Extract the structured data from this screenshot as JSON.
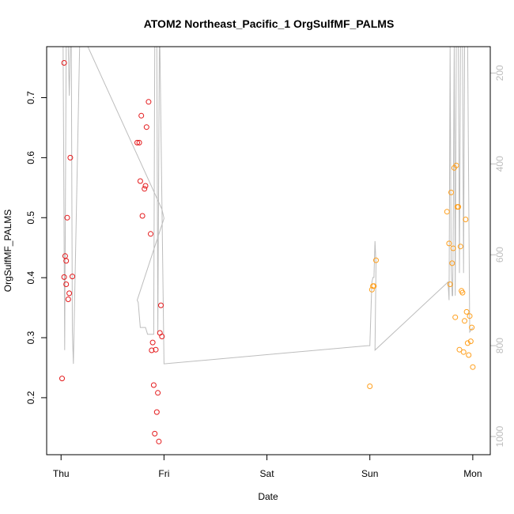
{
  "chart_data": {
    "type": "scatter",
    "title": "ATOM2 Northeast_Pacific_1 OrgSulfMF_PALMS",
    "xlabel": "Date",
    "ylabel": "OrgSulfMF_PALMS",
    "x_ticks": [
      "Thu",
      "Fri",
      "Sat",
      "Sun",
      "Mon"
    ],
    "x_range_days": [
      -0.14,
      4.17
    ],
    "y_ticks": [
      0.2,
      0.3,
      0.4,
      0.5,
      0.6,
      0.7
    ],
    "y_range": [
      0.105,
      0.785
    ],
    "right_axis": {
      "ticks": [
        200,
        400,
        600,
        800,
        1000
      ],
      "range": [
        1040,
        142
      ],
      "color": "#bdbdbd"
    },
    "colors": {
      "early": "#e41a1c",
      "late": "#ff9f1c",
      "line": "#bdbdbd"
    },
    "series": [
      {
        "color": "early",
        "points": [
          [
            0.01,
            0.232
          ],
          [
            0.03,
            0.401
          ],
          [
            0.03,
            0.758
          ],
          [
            0.04,
            0.436
          ],
          [
            0.05,
            0.389
          ],
          [
            0.05,
            0.428
          ],
          [
            0.06,
            0.5
          ],
          [
            0.07,
            0.364
          ],
          [
            0.08,
            0.374
          ],
          [
            0.09,
            0.6
          ],
          [
            0.11,
            0.402
          ],
          [
            0.74,
            0.625
          ],
          [
            0.76,
            0.625
          ],
          [
            0.77,
            0.561
          ],
          [
            0.78,
            0.67
          ],
          [
            0.79,
            0.503
          ],
          [
            0.81,
            0.548
          ],
          [
            0.82,
            0.553
          ],
          [
            0.83,
            0.651
          ],
          [
            0.85,
            0.693
          ],
          [
            0.87,
            0.473
          ],
          [
            0.88,
            0.279
          ],
          [
            0.89,
            0.292
          ],
          [
            0.9,
            0.221
          ],
          [
            0.91,
            0.14
          ],
          [
            0.92,
            0.28
          ],
          [
            0.93,
            0.176
          ],
          [
            0.94,
            0.208
          ],
          [
            0.95,
            0.127
          ],
          [
            0.96,
            0.308
          ],
          [
            0.97,
            0.354
          ],
          [
            0.98,
            0.302
          ]
        ]
      },
      {
        "color": "late",
        "points": [
          [
            3.0,
            0.219
          ],
          [
            3.02,
            0.38
          ],
          [
            3.03,
            0.386
          ],
          [
            3.04,
            0.386
          ],
          [
            3.06,
            0.429
          ],
          [
            3.75,
            0.51
          ],
          [
            3.77,
            0.457
          ],
          [
            3.78,
            0.389
          ],
          [
            3.79,
            0.542
          ],
          [
            3.8,
            0.424
          ],
          [
            3.81,
            0.449
          ],
          [
            3.82,
            0.583
          ],
          [
            3.83,
            0.334
          ],
          [
            3.84,
            0.587
          ],
          [
            3.85,
            0.518
          ],
          [
            3.86,
            0.518
          ],
          [
            3.87,
            0.28
          ],
          [
            3.88,
            0.452
          ],
          [
            3.89,
            0.378
          ],
          [
            3.9,
            0.375
          ],
          [
            3.91,
            0.276
          ],
          [
            3.92,
            0.328
          ],
          [
            3.93,
            0.497
          ],
          [
            3.94,
            0.343
          ],
          [
            3.95,
            0.291
          ],
          [
            3.96,
            0.271
          ],
          [
            3.97,
            0.336
          ],
          [
            3.98,
            0.294
          ],
          [
            3.99,
            0.317
          ],
          [
            4.0,
            0.251
          ]
        ]
      }
    ],
    "altitude_line": [
      [
        0.0,
        140
      ],
      [
        0.02,
        140
      ],
      [
        0.035,
        810
      ],
      [
        0.05,
        140
      ],
      [
        0.07,
        140
      ],
      [
        0.08,
        250
      ],
      [
        0.09,
        140
      ],
      [
        0.1,
        140
      ],
      [
        0.11,
        770
      ],
      [
        0.12,
        840
      ],
      [
        0.18,
        140
      ],
      [
        0.26,
        140
      ],
      [
        0.98,
        500
      ],
      [
        1.0,
        520
      ],
      [
        0.74,
        700
      ],
      [
        0.75,
        705
      ],
      [
        0.77,
        760
      ],
      [
        0.82,
        760
      ],
      [
        0.84,
        775
      ],
      [
        0.9,
        775
      ],
      [
        0.91,
        140
      ],
      [
        0.93,
        140
      ],
      [
        0.94,
        775
      ],
      [
        0.955,
        140
      ],
      [
        0.96,
        140
      ],
      [
        1.0,
        840
      ],
      [
        2.98,
        800
      ],
      [
        3.0,
        800
      ],
      [
        3.02,
        660
      ],
      [
        3.03,
        650
      ],
      [
        3.04,
        650
      ],
      [
        3.05,
        570
      ],
      [
        3.06,
        620
      ],
      [
        3.05,
        810
      ],
      [
        3.76,
        660
      ],
      [
        3.77,
        700
      ],
      [
        3.78,
        140
      ],
      [
        3.79,
        620
      ],
      [
        3.8,
        690
      ],
      [
        3.805,
        690
      ],
      [
        3.81,
        550
      ],
      [
        3.82,
        140
      ],
      [
        3.83,
        690
      ],
      [
        3.84,
        140
      ],
      [
        3.86,
        140
      ],
      [
        3.87,
        640
      ],
      [
        3.88,
        140
      ],
      [
        3.9,
        140
      ],
      [
        3.91,
        640
      ],
      [
        3.92,
        140
      ],
      [
        3.95,
        140
      ],
      [
        3.97,
        770
      ],
      [
        4.0,
        760
      ]
    ]
  }
}
